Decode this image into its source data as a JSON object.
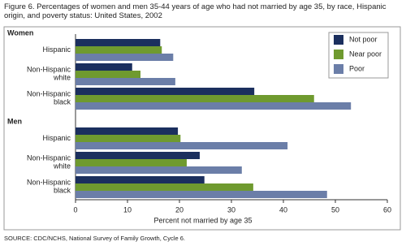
{
  "chart_data": {
    "type": "bar",
    "orientation": "horizontal",
    "title": "Figure 6. Percentages of women and men 35-44 years of age who had not married by age 35, by race, Hispanic origin, and poverty status: United States, 2002",
    "panels": [
      "Women",
      "Men"
    ],
    "categories": [
      [
        "Hispanic",
        "Non-Hispanic white",
        "Non-Hispanic black"
      ],
      [
        "Hispanic",
        "Non-Hispanic white",
        "Non-Hispanic black"
      ]
    ],
    "series": [
      {
        "name": "Not poor",
        "color": "#1b2f5e",
        "values": [
          [
            16.3,
            10.9,
            34.4
          ],
          [
            19.7,
            23.9,
            24.8
          ]
        ]
      },
      {
        "name": "Near poor",
        "color": "#6f9a2f",
        "values": [
          [
            16.6,
            12.5,
            45.9
          ],
          [
            20.2,
            21.4,
            34.2
          ]
        ]
      },
      {
        "name": "Poor",
        "color": "#6b7ea8",
        "values": [
          [
            18.8,
            19.2,
            53.0
          ],
          [
            40.8,
            32.0,
            48.4
          ]
        ]
      }
    ],
    "xlabel": "Percent not married by age 35",
    "xlim": [
      0,
      60
    ],
    "xticks": [
      0,
      10,
      20,
      30,
      40,
      50,
      60
    ],
    "source": "SOURCE: CDC/NCHS, National Survey of Family Growth, Cycle 6."
  }
}
